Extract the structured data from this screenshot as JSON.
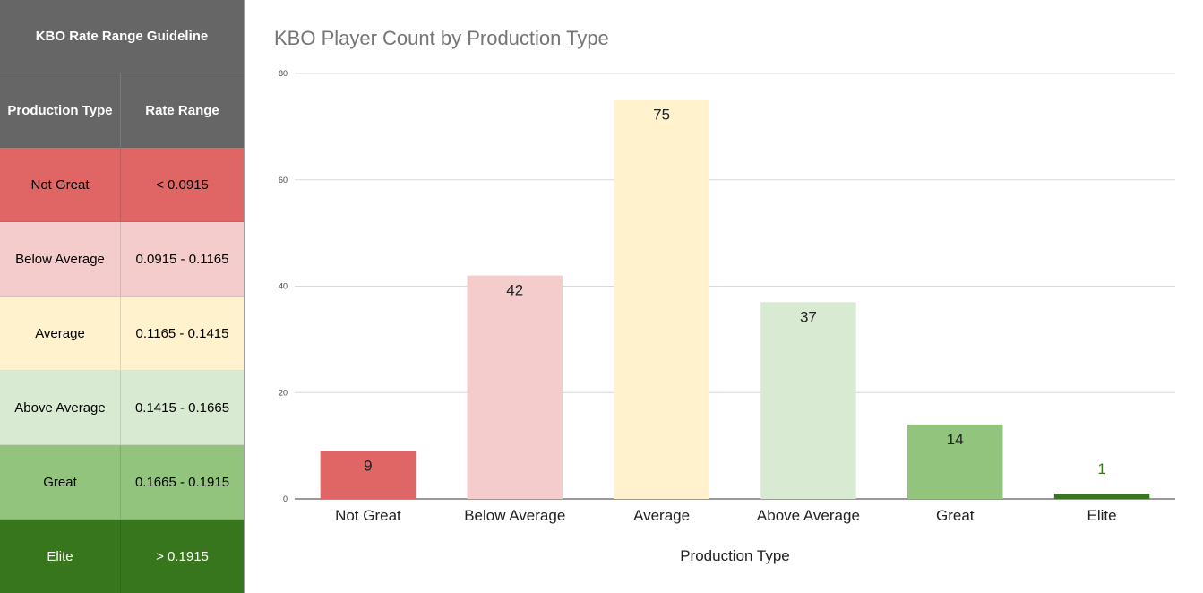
{
  "guide": {
    "title": "KBO Rate Range Guideline",
    "headers": {
      "type": "Production Type",
      "range": "Rate Range"
    },
    "header_color": "#666666",
    "rows": [
      {
        "type": "Not Great",
        "range": "< 0.0915",
        "bg": "#e06666",
        "fg": "#000000"
      },
      {
        "type": "Below Average",
        "range": "0.0915 - 0.1165",
        "bg": "#f4cccc",
        "fg": "#000000"
      },
      {
        "type": "Average",
        "range": "0.1165 - 0.1415",
        "bg": "#fff2cc",
        "fg": "#000000"
      },
      {
        "type": "Above Average",
        "range": "0.1415 - 0.1665",
        "bg": "#d9ead3",
        "fg": "#000000"
      },
      {
        "type": "Great",
        "range": "0.1665 - 0.1915",
        "bg": "#93c47d",
        "fg": "#000000"
      },
      {
        "type": "Elite",
        "range": "> 0.1915",
        "bg": "#38761d",
        "fg": "#ffffff"
      }
    ]
  },
  "chart_data": {
    "type": "bar",
    "title": "KBO Player Count by Production Type",
    "xlabel": "Production Type",
    "ylabel": "",
    "categories": [
      "Not Great",
      "Below Average",
      "Average",
      "Above Average",
      "Great",
      "Elite"
    ],
    "values": [
      9,
      42,
      75,
      37,
      14,
      1
    ],
    "colors": [
      "#e06666",
      "#f4cccc",
      "#fff2cc",
      "#d9ead3",
      "#93c47d",
      "#38761d"
    ],
    "label_colors": [
      "#202124",
      "#202124",
      "#202124",
      "#202124",
      "#202124",
      "#38761d"
    ],
    "ylim": [
      0,
      80
    ],
    "yticks": [
      0,
      20,
      40,
      60,
      80
    ],
    "grid": true,
    "legend": "none"
  }
}
